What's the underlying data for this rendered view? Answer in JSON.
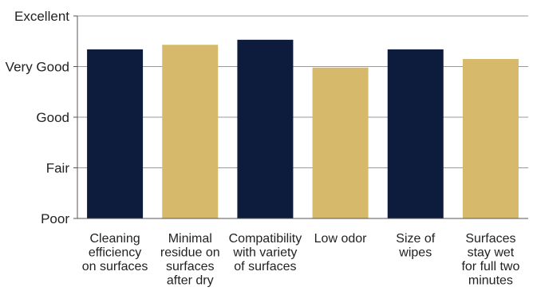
{
  "chart_data": {
    "type": "bar",
    "title": "",
    "xlabel": "",
    "ylabel": "",
    "y_tick_labels": [
      "Poor",
      "Fair",
      "Good",
      "Very Good",
      "Excellent"
    ],
    "ylim": [
      1,
      5
    ],
    "grid": true,
    "categories": [
      [
        "Cleaning",
        "efficiency",
        "on surfaces"
      ],
      [
        "Minimal",
        "residue on",
        "surfaces",
        "after dry"
      ],
      [
        "Compatibility",
        "with variety",
        "of surfaces"
      ],
      [
        "Low odor"
      ],
      [
        "Size of",
        "wipes"
      ],
      [
        "Surfaces",
        "stay wet",
        "for full two",
        "minutes"
      ]
    ],
    "values": [
      4.34,
      4.43,
      4.53,
      3.98,
      4.34,
      4.15
    ],
    "colors": [
      "#0d1b3d",
      "#d6b96a",
      "#0d1b3d",
      "#d6b96a",
      "#0d1b3d",
      "#d6b96a"
    ]
  }
}
